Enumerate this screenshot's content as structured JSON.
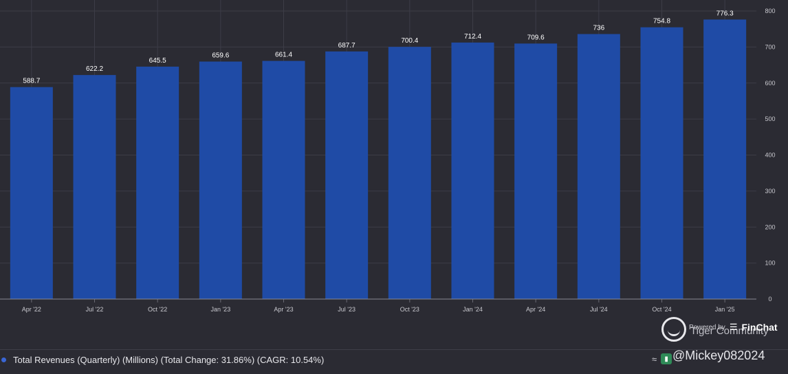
{
  "chart_data": {
    "type": "bar",
    "categories": [
      "Apr '22",
      "Jul '22",
      "Oct '22",
      "Jan '23",
      "Apr '23",
      "Jul '23",
      "Oct '23",
      "Jan '24",
      "Apr '24",
      "Jul '24",
      "Oct '24",
      "Jan '25"
    ],
    "values": [
      588.7,
      622.2,
      645.5,
      659.6,
      661.4,
      687.7,
      700.4,
      712.4,
      709.6,
      736,
      754.8,
      776.3
    ],
    "value_labels": [
      "588.7",
      "622.2",
      "645.5",
      "659.6",
      "661.4",
      "687.7",
      "700.4",
      "712.4",
      "709.6",
      "736",
      "754.8",
      "776.3"
    ],
    "y_ticks": [
      0,
      100,
      200,
      300,
      400,
      500,
      600,
      700,
      800
    ],
    "ylim": [
      0,
      800
    ],
    "grid": true,
    "y_axis_side": "right",
    "bar_color": "#1f4ba6",
    "series": [
      {
        "name": "Total Revenues (Quarterly) (Millions) (Total Change: 31.86%) (CAGR: 10.54%)",
        "color": "#3a66d6"
      }
    ]
  },
  "legend": {
    "text": "Total Revenues (Quarterly) (Millions) (Total Change: 31.86%) (CAGR: 10.54%)"
  },
  "branding": {
    "powered_by": "Powered by",
    "finchat": "FinChat",
    "watermark": "Tiger Community",
    "handle": "@Mickey082024"
  },
  "icons": {
    "trend": "trend-lines-icon",
    "chart": "bar-chart-badge-icon",
    "settings": "gear-icon",
    "link": "link-icon",
    "fullscreen": "fullscreen-icon"
  }
}
